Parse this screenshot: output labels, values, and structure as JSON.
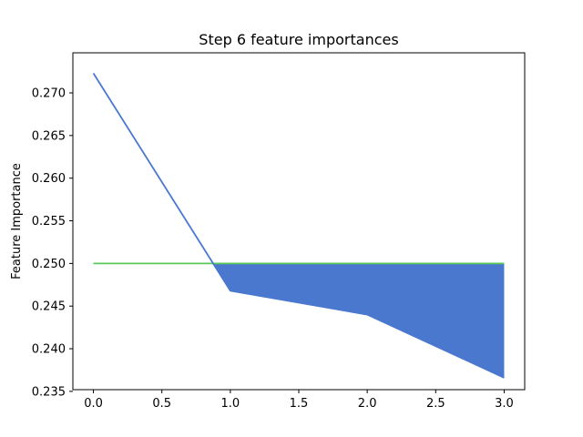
{
  "chart_data": {
    "type": "line",
    "title": "Step 6 feature importances",
    "xlabel": "",
    "ylabel": "Feature Importance",
    "xlim": [
      -0.15,
      3.15
    ],
    "ylim": [
      0.2352,
      0.2747
    ],
    "x_ticks": [
      "0.0",
      "0.5",
      "1.0",
      "1.5",
      "2.0",
      "2.5",
      "3.0"
    ],
    "y_ticks": [
      "0.235",
      "0.240",
      "0.245",
      "0.250",
      "0.255",
      "0.260",
      "0.265",
      "0.270"
    ],
    "grid": false,
    "series": [
      {
        "color": "#4a78cf",
        "x": [
          0,
          1,
          2,
          3
        ],
        "y": [
          0.2723,
          0.2468,
          0.244,
          0.2366
        ]
      },
      {
        "color": "#5bc85b",
        "x": [
          0,
          1,
          2,
          3
        ],
        "y": [
          0.25,
          0.25,
          0.25,
          0.25
        ]
      }
    ],
    "fill_between": {
      "color": "#4a78cf",
      "where": "series1 < series2"
    }
  }
}
